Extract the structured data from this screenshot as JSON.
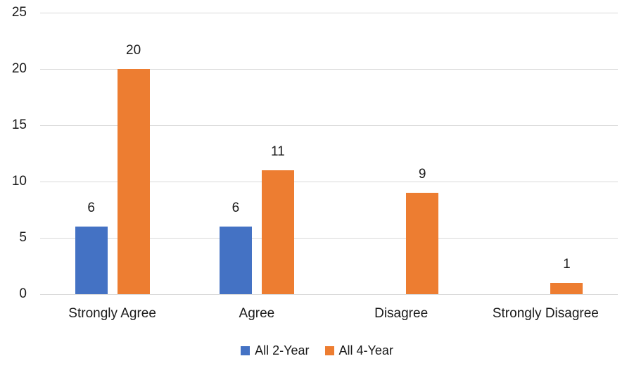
{
  "chart_data": {
    "type": "bar",
    "categories": [
      "Strongly Agree",
      "Agree",
      "Disagree",
      "Strongly Disagree"
    ],
    "series": [
      {
        "name": "All 2-Year",
        "color": "#4472C4",
        "values": [
          6,
          6,
          0,
          0
        ]
      },
      {
        "name": "All 4-Year",
        "color": "#ED7D31",
        "values": [
          20,
          11,
          9,
          1
        ]
      }
    ],
    "y_ticks": [
      0,
      5,
      10,
      15,
      20,
      25
    ],
    "ylim": [
      0,
      25
    ],
    "grid": true,
    "gridline_color": "#D9D9D9",
    "text_color": "#1A1A1A",
    "data_labels": true,
    "legend_position": "bottom"
  }
}
